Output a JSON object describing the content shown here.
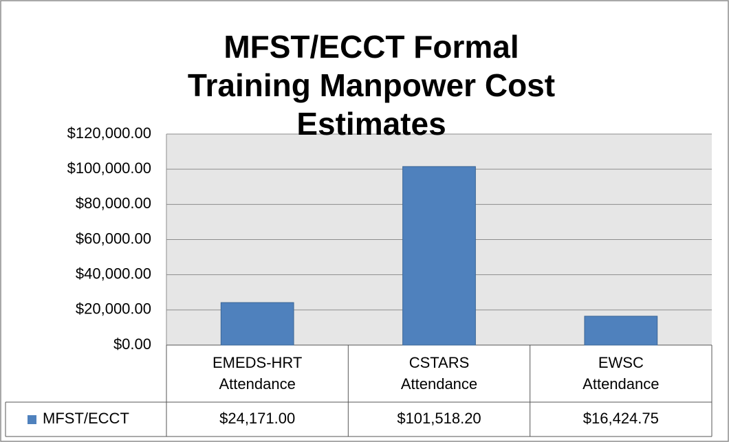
{
  "chart_data": {
    "type": "bar",
    "title": "MFST/ECCT Formal Training Manpower Cost Estimates",
    "categories": [
      "EMEDS-HRT Attendance",
      "CSTARS Attendance",
      "EWSC Attendance"
    ],
    "series": [
      {
        "name": "MFST/ECCT",
        "color": "#4f81bd",
        "values": [
          24171.0,
          101518.2,
          16424.75
        ],
        "value_labels": [
          "$24,171.00",
          "$101,518.20",
          "$16,424.75"
        ]
      }
    ],
    "ylim": [
      0,
      120000
    ],
    "yticks": [
      {
        "value": 0,
        "label": "$0.00"
      },
      {
        "value": 20000,
        "label": "$20,000.00"
      },
      {
        "value": 40000,
        "label": "$40,000.00"
      },
      {
        "value": 60000,
        "label": "$60,000.00"
      },
      {
        "value": 80000,
        "label": "$80,000.00"
      },
      {
        "value": 100000,
        "label": "$100,000.00"
      },
      {
        "value": 120000,
        "label": "$120,000.00"
      }
    ],
    "grid": true
  }
}
